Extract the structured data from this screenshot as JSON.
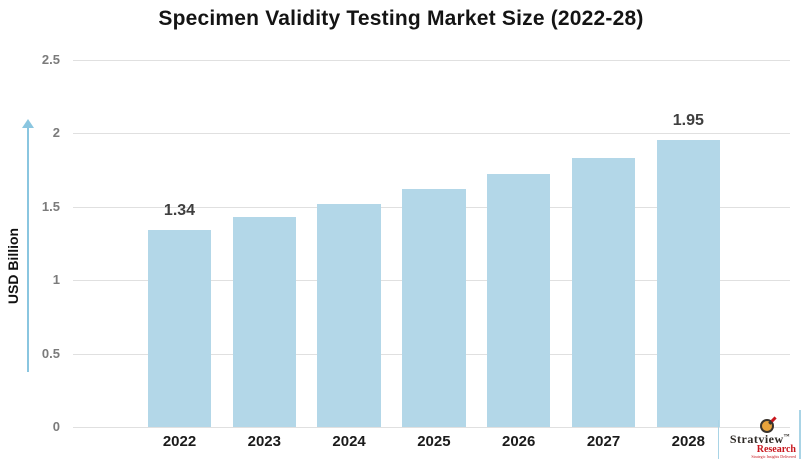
{
  "title": "Specimen Validity Testing Market Size (2022-28)",
  "chart_data": {
    "type": "bar",
    "title": "Specimen Validity Testing Market Size (2022-28)",
    "categories": [
      "2022",
      "2023",
      "2024",
      "2025",
      "2026",
      "2027",
      "2028"
    ],
    "values": [
      1.34,
      1.43,
      1.52,
      1.62,
      1.72,
      1.83,
      1.95
    ],
    "value_labels_shown": [
      "1.34",
      null,
      null,
      null,
      null,
      null,
      "1.95"
    ],
    "xlabel": "",
    "ylabel": "USD Billion",
    "ylim": [
      0,
      2.5
    ],
    "yticks": [
      "0",
      "0.5",
      "1",
      "1.5",
      "2",
      "2.5"
    ],
    "grid": true,
    "legend": "none",
    "bar_color": "#b3d7e8"
  },
  "colors": {
    "background": "#ffffff",
    "bar": "#b3d7e8",
    "gridline": "#e0e0e0",
    "axis_tick_text": "#7b7b7b",
    "x_tick_text": "#1b1b1b",
    "value_label_text": "#3f3f3f",
    "title_text": "#141414",
    "axis_arrow": "#8ac6e0",
    "brand_red": "#c8161d",
    "brand_dark": "#2e2a26",
    "brand_rule": "#a9d4e6"
  },
  "branding": {
    "name": "Stratview",
    "trademark": "™",
    "division": "Research",
    "tagline": "Strategic Insights Delivered"
  }
}
